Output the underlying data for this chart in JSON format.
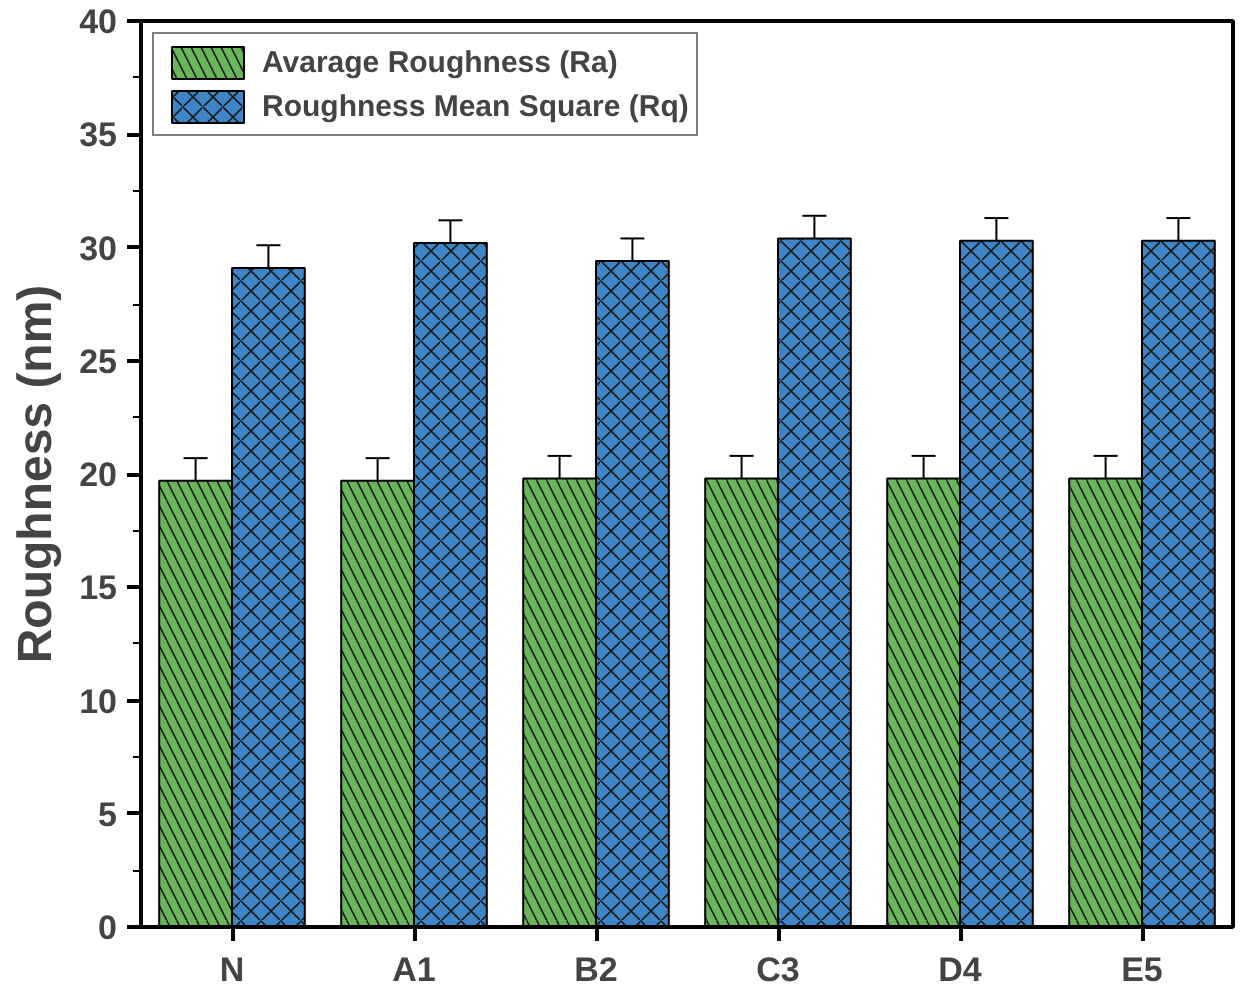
{
  "chart_data": {
    "type": "bar",
    "ylabel": "Roughness (nm)",
    "categories": [
      "N",
      "A1",
      "B2",
      "C3",
      "D4",
      "E5"
    ],
    "series": [
      {
        "name": "Avarage Roughness (Ra)",
        "color": "#6ab45c",
        "values": [
          19.7,
          19.7,
          19.8,
          19.8,
          19.8,
          19.8
        ],
        "errors": [
          1.0,
          1.0,
          1.0,
          1.0,
          1.0,
          1.0
        ]
      },
      {
        "name": "Roughness Mean Square (Rq)",
        "color": "#3d85c6",
        "values": [
          29.1,
          30.2,
          29.4,
          30.4,
          30.3,
          30.3
        ],
        "errors": [
          1.0,
          1.0,
          1.0,
          1.0,
          1.0,
          1.0
        ]
      }
    ],
    "ylim": [
      0,
      40
    ],
    "yticks": [
      0,
      5,
      10,
      15,
      20,
      25,
      30,
      35,
      40
    ],
    "grid": false,
    "legend": "top left"
  }
}
